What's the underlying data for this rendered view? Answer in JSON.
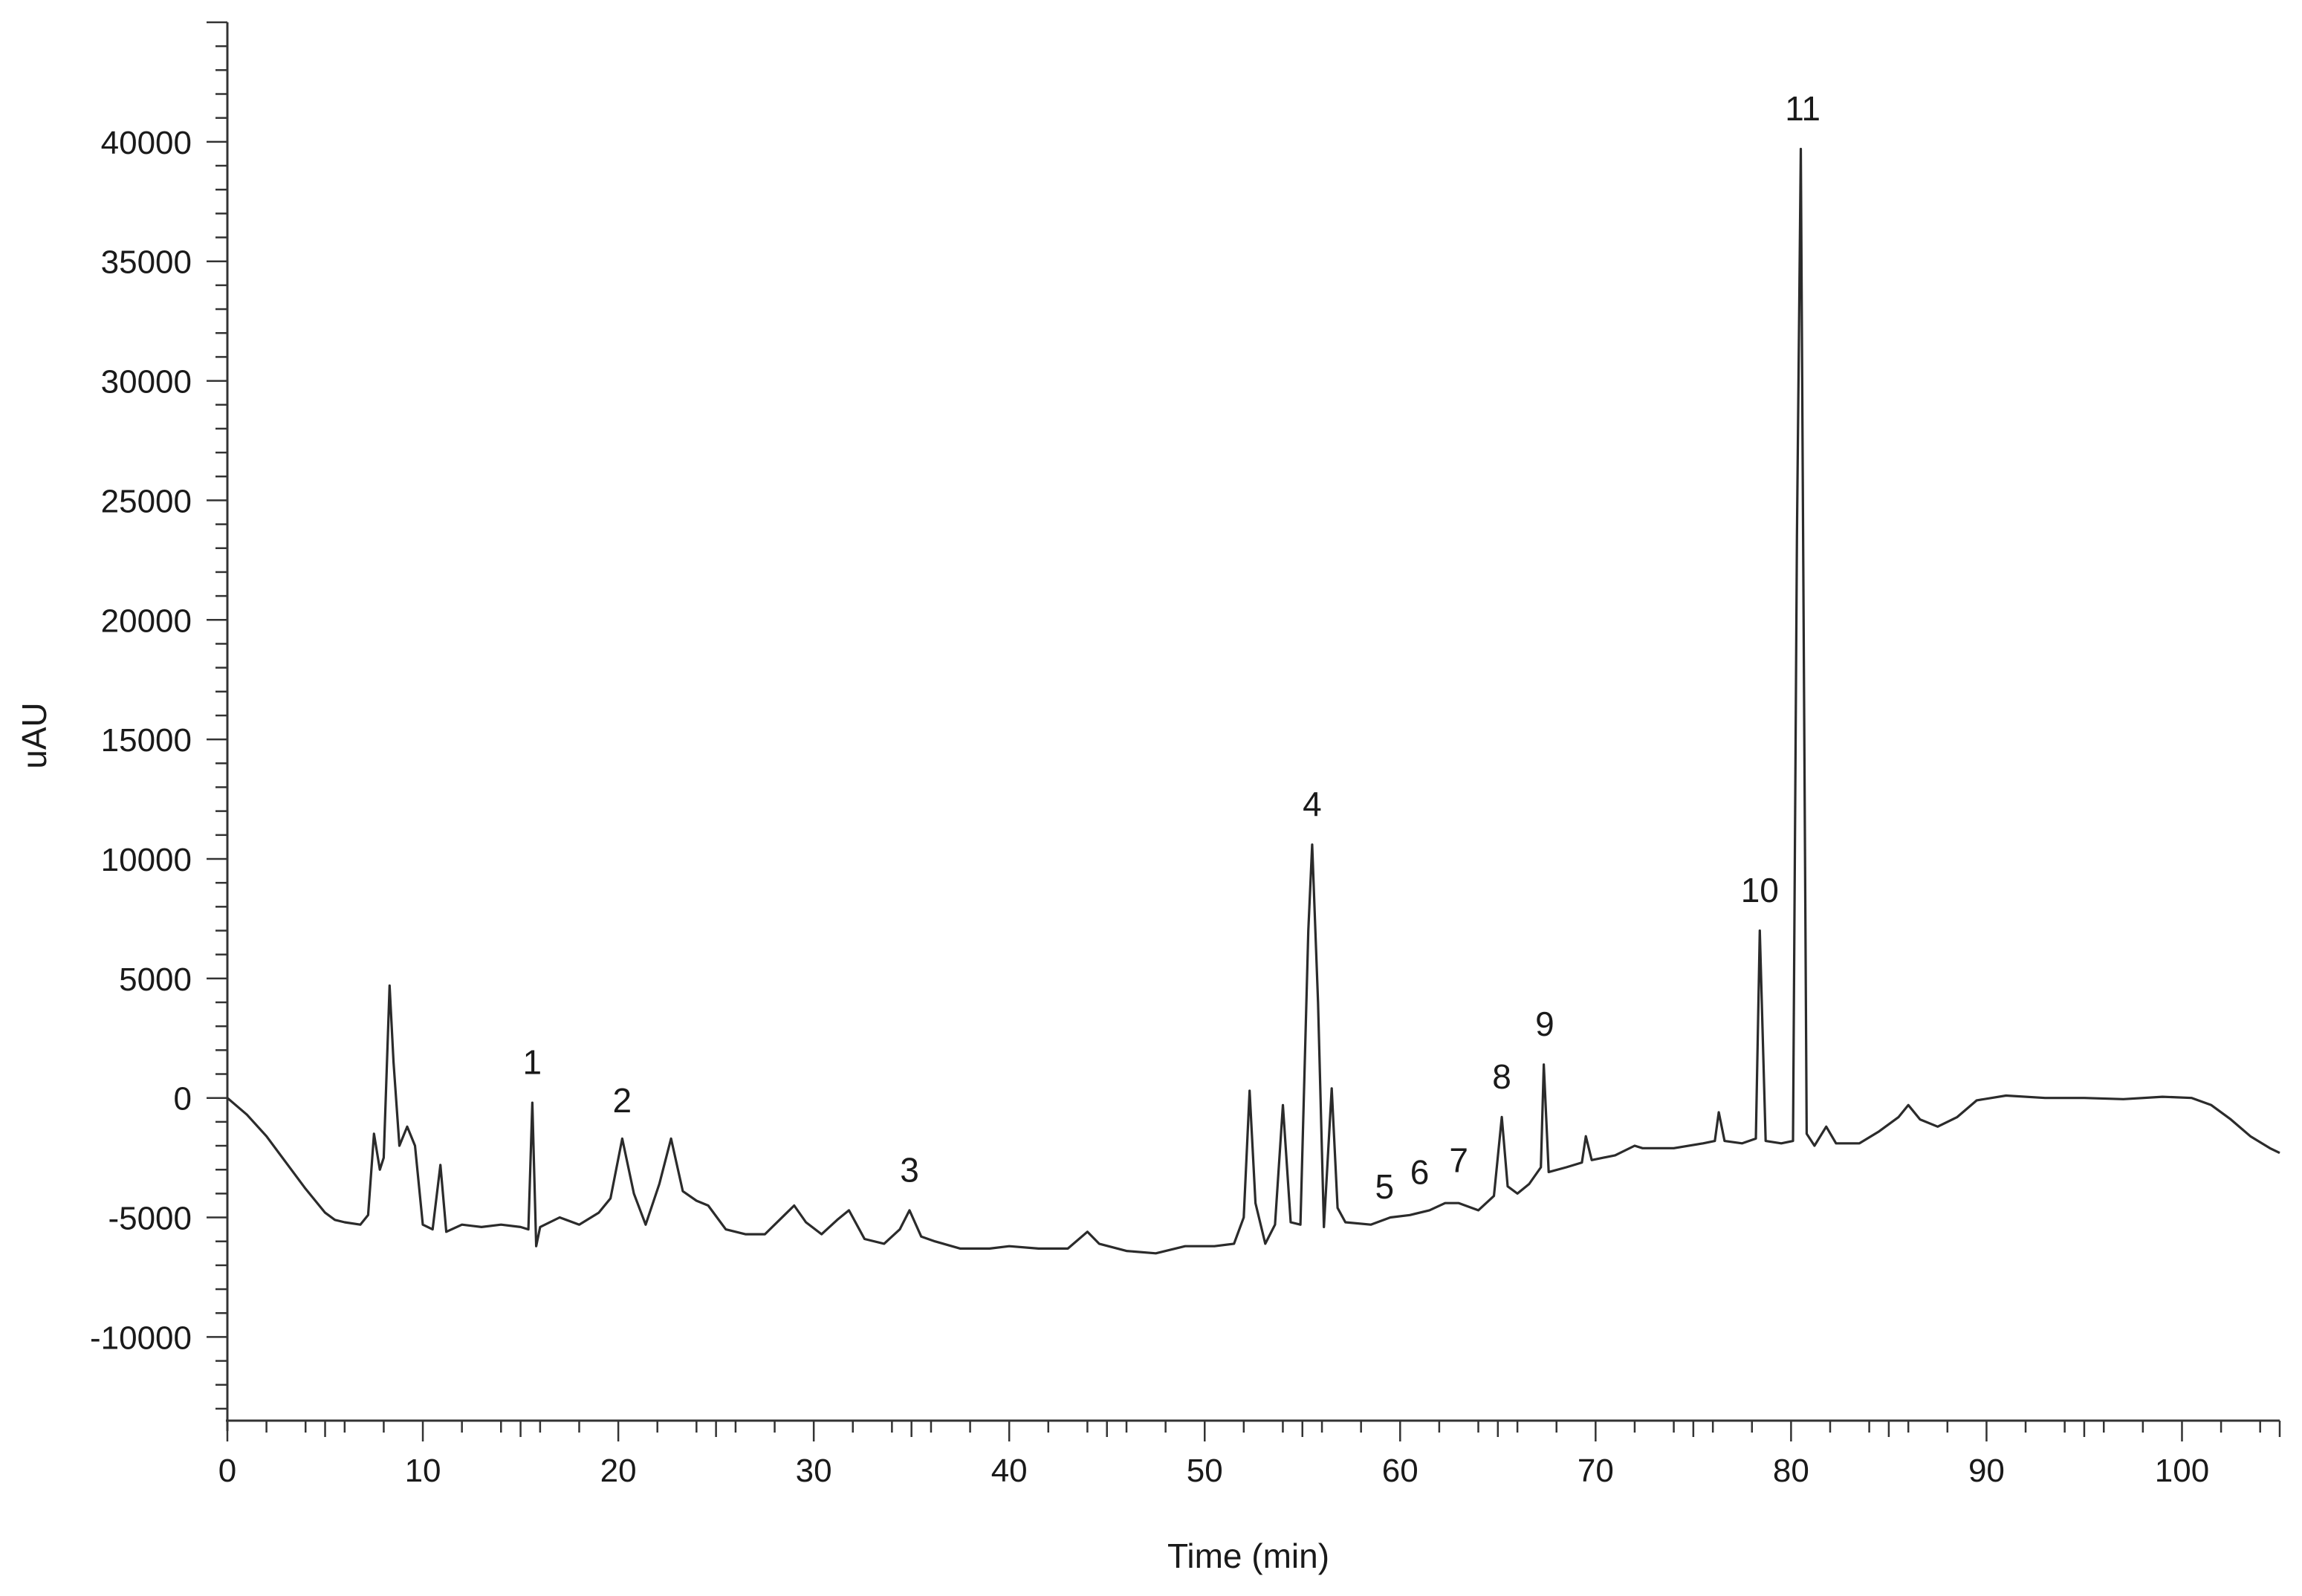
{
  "chart_data": {
    "type": "line",
    "title": "",
    "xlabel": "Time (min)",
    "ylabel": "uAU",
    "xlim": [
      0,
      105
    ],
    "ylim": [
      -13500,
      45000
    ],
    "x_ticks": [
      0,
      10,
      20,
      30,
      40,
      50,
      60,
      70,
      80,
      90,
      100
    ],
    "x_tick_labels": [
      "0",
      "10",
      "20",
      "30",
      "40",
      "50",
      "60",
      "70",
      "80",
      "90",
      "100"
    ],
    "y_ticks": [
      -10000,
      -5000,
      0,
      5000,
      10000,
      15000,
      20000,
      25000,
      30000,
      35000,
      40000
    ],
    "y_tick_labels": [
      "-10000",
      "-5000",
      "0",
      "5000",
      "10000",
      "15000",
      "20000",
      "25000",
      "30000",
      "35000",
      "40000"
    ],
    "x_minor_step": 2,
    "y_minor_step": 1000,
    "grid": false,
    "line_color": "#2b2b2b",
    "series": [
      {
        "values": [
          [
            0,
            0
          ],
          [
            1,
            -700
          ],
          [
            2,
            -1600
          ],
          [
            3,
            -2700
          ],
          [
            4,
            -3800
          ],
          [
            5,
            -4800
          ],
          [
            5.5,
            -5100
          ],
          [
            6,
            -5200
          ],
          [
            6.8,
            -5300
          ],
          [
            7.2,
            -4900
          ],
          [
            7.5,
            -1500
          ],
          [
            7.8,
            -3000
          ],
          [
            8,
            -2500
          ],
          [
            8.3,
            4700
          ],
          [
            8.5,
            1500
          ],
          [
            8.8,
            -2000
          ],
          [
            9.2,
            -1200
          ],
          [
            9.6,
            -2000
          ],
          [
            10,
            -5300
          ],
          [
            10.5,
            -5500
          ],
          [
            10.9,
            -2800
          ],
          [
            11.2,
            -5600
          ],
          [
            12,
            -5300
          ],
          [
            13,
            -5400
          ],
          [
            14,
            -5300
          ],
          [
            15,
            -5400
          ],
          [
            15.4,
            -5500
          ],
          [
            15.6,
            -200
          ],
          [
            15.8,
            -6200
          ],
          [
            16,
            -5400
          ],
          [
            17,
            -5000
          ],
          [
            18,
            -5300
          ],
          [
            19,
            -4800
          ],
          [
            19.6,
            -4200
          ],
          [
            20.2,
            -1700
          ],
          [
            20.8,
            -4000
          ],
          [
            21.4,
            -5300
          ],
          [
            22.1,
            -3600
          ],
          [
            22.7,
            -1700
          ],
          [
            23.3,
            -3900
          ],
          [
            24,
            -4300
          ],
          [
            24.6,
            -4500
          ],
          [
            25.5,
            -5500
          ],
          [
            26.5,
            -5700
          ],
          [
            27.5,
            -5700
          ],
          [
            28.5,
            -4900
          ],
          [
            29,
            -4500
          ],
          [
            29.6,
            -5200
          ],
          [
            30.4,
            -5700
          ],
          [
            31.2,
            -5100
          ],
          [
            31.8,
            -4700
          ],
          [
            32.6,
            -5900
          ],
          [
            33.6,
            -6100
          ],
          [
            34.4,
            -5500
          ],
          [
            34.9,
            -4700
          ],
          [
            35.5,
            -5800
          ],
          [
            36.2,
            -6000
          ],
          [
            37.5,
            -6300
          ],
          [
            39,
            -6300
          ],
          [
            40,
            -6200
          ],
          [
            41.5,
            -6300
          ],
          [
            43,
            -6300
          ],
          [
            44,
            -5600
          ],
          [
            44.6,
            -6100
          ],
          [
            46,
            -6400
          ],
          [
            47.5,
            -6500
          ],
          [
            49,
            -6200
          ],
          [
            50.5,
            -6200
          ],
          [
            51.5,
            -6100
          ],
          [
            52,
            -5000
          ],
          [
            52.3,
            300
          ],
          [
            52.6,
            -4400
          ],
          [
            53.1,
            -6100
          ],
          [
            53.6,
            -5300
          ],
          [
            54,
            -300
          ],
          [
            54.4,
            -5200
          ],
          [
            54.9,
            -5300
          ],
          [
            55.3,
            7000
          ],
          [
            55.5,
            10600
          ],
          [
            55.8,
            4000
          ],
          [
            56.1,
            -5400
          ],
          [
            56.5,
            400
          ],
          [
            56.8,
            -4600
          ],
          [
            57.2,
            -5200
          ],
          [
            58.5,
            -5300
          ],
          [
            59.5,
            -5000
          ],
          [
            60.5,
            -4900
          ],
          [
            61.5,
            -4700
          ],
          [
            62.3,
            -4400
          ],
          [
            63,
            -4400
          ],
          [
            64,
            -4700
          ],
          [
            64.8,
            -4100
          ],
          [
            65.2,
            -800
          ],
          [
            65.5,
            -3700
          ],
          [
            66,
            -4000
          ],
          [
            66.6,
            -3600
          ],
          [
            67.2,
            -2900
          ],
          [
            67.35,
            1400
          ],
          [
            67.6,
            -3100
          ],
          [
            68.5,
            -2900
          ],
          [
            69.3,
            -2700
          ],
          [
            69.5,
            -1600
          ],
          [
            69.8,
            -2600
          ],
          [
            71,
            -2400
          ],
          [
            72,
            -2000
          ],
          [
            72.4,
            -2100
          ],
          [
            74,
            -2100
          ],
          [
            75.5,
            -1900
          ],
          [
            76.1,
            -1800
          ],
          [
            76.3,
            -600
          ],
          [
            76.6,
            -1800
          ],
          [
            77.5,
            -1900
          ],
          [
            78.2,
            -1700
          ],
          [
            78.4,
            7000
          ],
          [
            78.7,
            -1800
          ],
          [
            79.5,
            -1900
          ],
          [
            80.1,
            -1800
          ],
          [
            80.3,
            23500
          ],
          [
            80.5,
            39700
          ],
          [
            80.8,
            -1500
          ],
          [
            81.2,
            -2000
          ],
          [
            81.8,
            -1200
          ],
          [
            82.3,
            -1900
          ],
          [
            83.5,
            -1900
          ],
          [
            84.5,
            -1400
          ],
          [
            85.5,
            -800
          ],
          [
            86,
            -300
          ],
          [
            86.6,
            -900
          ],
          [
            87.5,
            -1200
          ],
          [
            88.5,
            -800
          ],
          [
            89.5,
            -100
          ],
          [
            91,
            100
          ],
          [
            93,
            0
          ],
          [
            95,
            0
          ],
          [
            97,
            -50
          ],
          [
            99,
            50
          ],
          [
            100.5,
            0
          ],
          [
            101.5,
            -300
          ],
          [
            102.5,
            -900
          ],
          [
            103.5,
            -1600
          ],
          [
            104.5,
            -2100
          ],
          [
            105,
            -2300
          ]
        ]
      }
    ],
    "annotations": [
      {
        "text": "1",
        "x": 15.6,
        "y": 1000
      },
      {
        "text": "2",
        "x": 20.2,
        "y": -600
      },
      {
        "text": "3",
        "x": 34.9,
        "y": -3500
      },
      {
        "text": "4",
        "x": 55.5,
        "y": 11800
      },
      {
        "text": "5",
        "x": 59.2,
        "y": -4200
      },
      {
        "text": "6",
        "x": 61.0,
        "y": -3600
      },
      {
        "text": "7",
        "x": 63.0,
        "y": -3100
      },
      {
        "text": "8",
        "x": 65.2,
        "y": 400
      },
      {
        "text": "9",
        "x": 67.4,
        "y": 2600
      },
      {
        "text": "10",
        "x": 78.4,
        "y": 8200
      },
      {
        "text": "11",
        "x": 80.6,
        "y": 40900
      }
    ]
  }
}
